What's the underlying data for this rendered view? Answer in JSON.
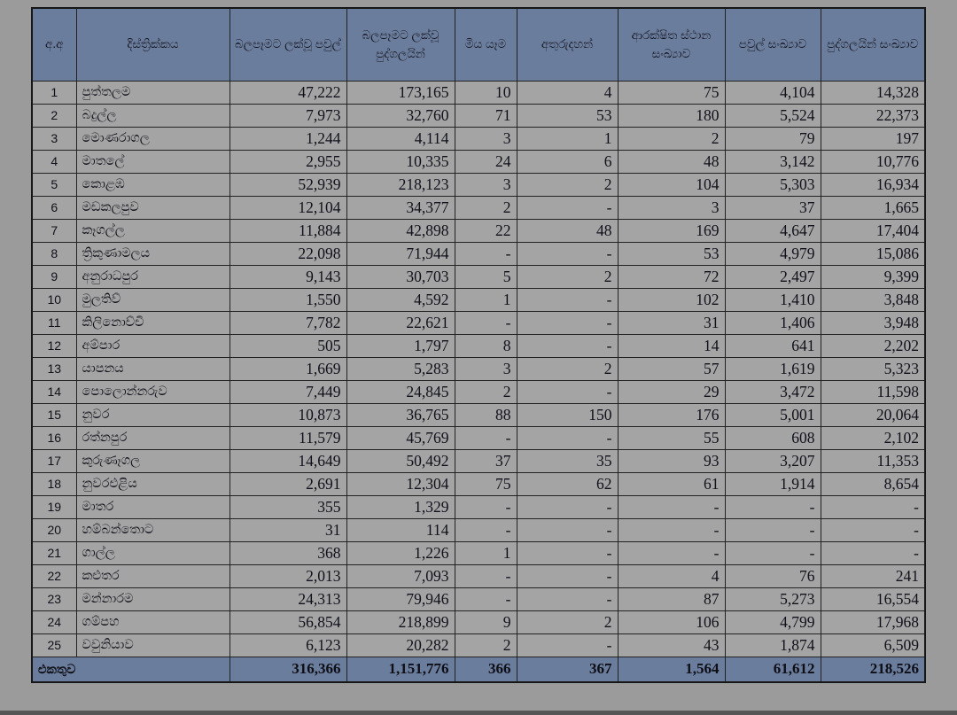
{
  "colors": {
    "page_background": "#9b9b9b",
    "header_fill": "#6b7d9c",
    "row_fill": "#a4a4a4",
    "border": "#1c1c1c",
    "text": "#10101a"
  },
  "table": {
    "columns": [
      {
        "key": "serial-no",
        "label": "අ.අ"
      },
      {
        "key": "district",
        "label": "දිස්ත්‍රික්කය"
      },
      {
        "key": "affected-families",
        "label": "බලපෑමට ලක්වූ පවුල්"
      },
      {
        "key": "affected-persons",
        "label": "බලපෑමට ලක්වූ පුද්ගලයින්"
      },
      {
        "key": "deaths",
        "label": "මිය යෑම"
      },
      {
        "key": "missing",
        "label": "අතුරුදහන්"
      },
      {
        "key": "safe-location-count",
        "label": "ආරක්ෂිත ස්ථාන සංඛ්‍යාව"
      },
      {
        "key": "family-count",
        "label": "පවුල් සංඛ්‍යාව"
      },
      {
        "key": "person-count",
        "label": "පුද්ගලයින් සංඛ්‍යාව"
      }
    ],
    "rows": [
      [
        "1",
        "පුත්තලම",
        "47,222",
        "173,165",
        "10",
        "4",
        "75",
        "4,104",
        "14,328"
      ],
      [
        "2",
        "බදුල්ල",
        "7,973",
        "32,760",
        "71",
        "53",
        "180",
        "5,524",
        "22,373"
      ],
      [
        "3",
        "මොණරාගල",
        "1,244",
        "4,114",
        "3",
        "1",
        "2",
        "79",
        "197"
      ],
      [
        "4",
        "මාතලේ",
        "2,955",
        "10,335",
        "24",
        "6",
        "48",
        "3,142",
        "10,776"
      ],
      [
        "5",
        "කොළඹ",
        "52,939",
        "218,123",
        "3",
        "2",
        "104",
        "5,303",
        "16,934"
      ],
      [
        "6",
        "මඩකලපුව",
        "12,104",
        "34,377",
        "2",
        "-",
        "3",
        "37",
        "1,665"
      ],
      [
        "7",
        "කෑගල්ල",
        "11,884",
        "42,898",
        "22",
        "48",
        "169",
        "4,647",
        "17,404"
      ],
      [
        "8",
        "ත්‍රිකුණාමලය",
        "22,098",
        "71,944",
        "-",
        "-",
        "53",
        "4,979",
        "15,086"
      ],
      [
        "9",
        "අනුරාධපුර",
        "9,143",
        "30,703",
        "5",
        "2",
        "72",
        "2,497",
        "9,399"
      ],
      [
        "10",
        "මුලතිව්",
        "1,550",
        "4,592",
        "1",
        "-",
        "102",
        "1,410",
        "3,848"
      ],
      [
        "11",
        "කිලිනොච්චි",
        "7,782",
        "22,621",
        "-",
        "-",
        "31",
        "1,406",
        "3,948"
      ],
      [
        "12",
        "අම්පාර",
        "505",
        "1,797",
        "8",
        "-",
        "14",
        "641",
        "2,202"
      ],
      [
        "13",
        "යාපනය",
        "1,669",
        "5,283",
        "3",
        "2",
        "57",
        "1,619",
        "5,323"
      ],
      [
        "14",
        "පොලොන්නරුව",
        "7,449",
        "24,845",
        "2",
        "-",
        "29",
        "3,472",
        "11,598"
      ],
      [
        "15",
        "නුවර",
        "10,873",
        "36,765",
        "88",
        "150",
        "176",
        "5,001",
        "20,064"
      ],
      [
        "16",
        "රත්නපුර",
        "11,579",
        "45,769",
        "-",
        "-",
        "55",
        "608",
        "2,102"
      ],
      [
        "17",
        "කුරුණෑගල",
        "14,649",
        "50,492",
        "37",
        "35",
        "93",
        "3,207",
        "11,353"
      ],
      [
        "18",
        "නුවරඑළිය",
        "2,691",
        "12,304",
        "75",
        "62",
        "61",
        "1,914",
        "8,654"
      ],
      [
        "19",
        "මාතර",
        "355",
        "1,329",
        "-",
        "-",
        "-",
        "-",
        "-"
      ],
      [
        "20",
        "හම්බන්තොට",
        "31",
        "114",
        "-",
        "-",
        "-",
        "-",
        "-"
      ],
      [
        "21",
        "ගාල්ල",
        "368",
        "1,226",
        "1",
        "-",
        "-",
        "-",
        "-"
      ],
      [
        "22",
        "කළුතර",
        "2,013",
        "7,093",
        "-",
        "-",
        "4",
        "76",
        "241"
      ],
      [
        "23",
        "මන්නාරම",
        "24,313",
        "79,946",
        "-",
        "-",
        "87",
        "5,273",
        "16,554"
      ],
      [
        "24",
        "ගම්පහ",
        "56,854",
        "218,899",
        "9",
        "2",
        "106",
        "4,799",
        "17,968"
      ],
      [
        "25",
        "වවුනියාව",
        "6,123",
        "20,282",
        "2",
        "-",
        "43",
        "1,874",
        "6,509"
      ]
    ],
    "total": {
      "label": "එකතුව",
      "values": [
        "316,366",
        "1,151,776",
        "366",
        "367",
        "1,564",
        "61,612",
        "218,526"
      ]
    }
  }
}
